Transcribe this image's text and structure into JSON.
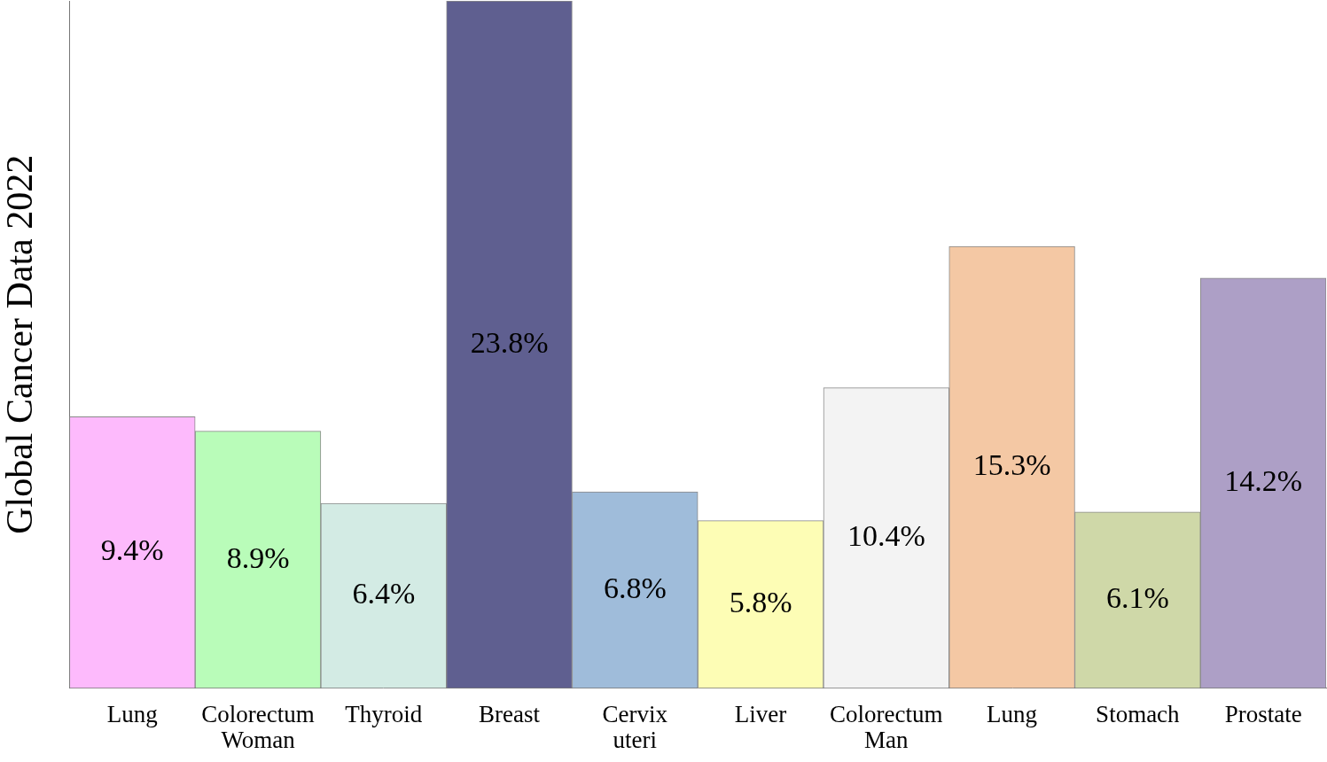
{
  "chart_data": {
    "type": "bar",
    "y_label": "Global Cancer Data 2022",
    "categories": [
      "Lung",
      "Colorectum\nWoman",
      "Thyroid",
      "Breast",
      "Cervix\nuteri",
      "Liver",
      "Colorectum\nMan",
      "Lung",
      "Stomach",
      "Prostate"
    ],
    "values": [
      9.4,
      8.9,
      6.4,
      23.8,
      6.8,
      5.8,
      10.4,
      15.3,
      6.1,
      14.2
    ],
    "value_labels": [
      "9.4%",
      "8.9%",
      "6.4%",
      "23.8%",
      "6.8%",
      "5.8%",
      "10.4%",
      "15.3%",
      "6.1%",
      "14.2%"
    ],
    "colors": [
      "#fdbafc",
      "#b9fcb9",
      "#d3ebe4",
      "#5f5f90",
      "#9fbcda",
      "#fdfdb5",
      "#f3f3f3",
      "#f4c8a4",
      "#cfd8a8",
      "#ad9fc6"
    ],
    "ylim": [
      0,
      23.8
    ],
    "yticks": [],
    "grid": false,
    "data_labels": true,
    "tick_labels": "x"
  }
}
